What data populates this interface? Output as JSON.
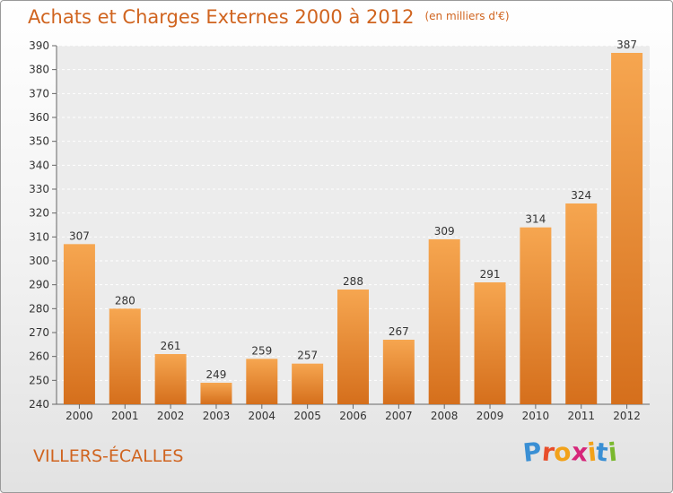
{
  "chart_data": {
    "type": "bar",
    "title": "Achats et Charges Externes 2000 à 2012",
    "subtitle": "(en milliers d'€)",
    "categories": [
      "2000",
      "2001",
      "2002",
      "2003",
      "2004",
      "2005",
      "2006",
      "2007",
      "2008",
      "2009",
      "2010",
      "2011",
      "2012"
    ],
    "values": [
      307,
      280,
      261,
      249,
      259,
      257,
      288,
      267,
      309,
      291,
      314,
      324,
      387
    ],
    "xlabel": "",
    "ylabel": "",
    "ylim": [
      240,
      390
    ],
    "yticks": [
      240,
      250,
      260,
      270,
      280,
      290,
      300,
      310,
      320,
      330,
      340,
      350,
      360,
      370,
      380,
      390
    ],
    "grid": true,
    "bar_color": "#f2913f"
  },
  "footer": {
    "city": "VILLERS-ÉCALLES",
    "brand_letters": [
      "P",
      "r",
      "o",
      "x",
      "i",
      "t",
      "i"
    ],
    "brand_colors": [
      "#3a8fd4",
      "#e84d2a",
      "#f2a21a",
      "#d6267a",
      "#f2a21a",
      "#3a8fd4",
      "#7ab82e"
    ]
  }
}
